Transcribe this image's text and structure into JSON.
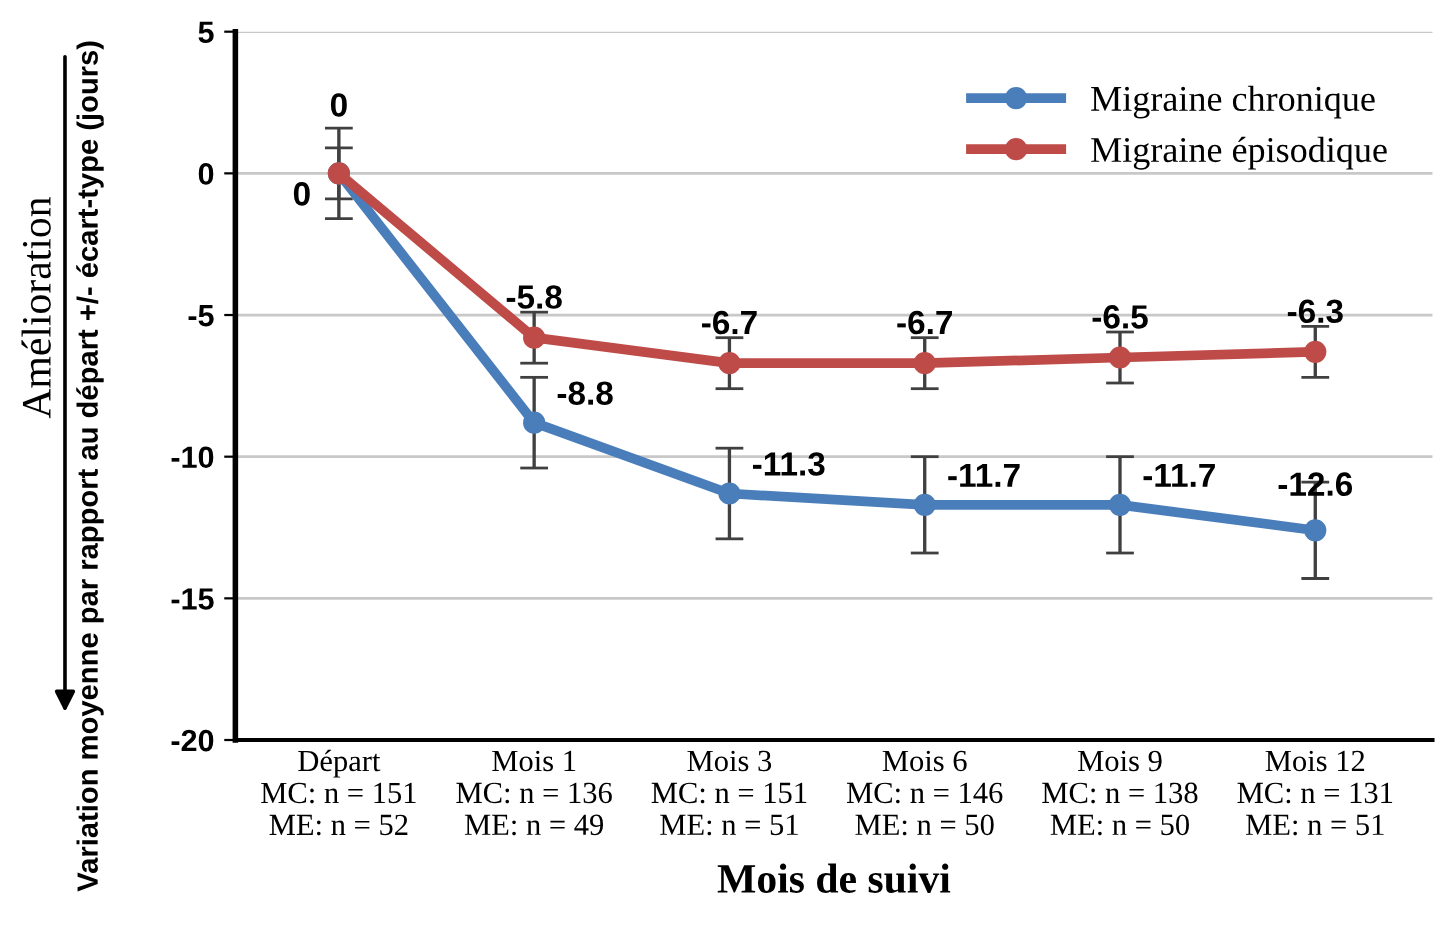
{
  "chart_data": {
    "type": "line",
    "categories": [
      "Départ\nMC: n = 151\nME: n = 52",
      "Mois 1\nMC: n = 136\nME: n = 49",
      "Mois 3\nMC: n = 151\nME: n = 51",
      "Mois 6\nMC: n = 146\nME: n = 50",
      "Mois 9\nMC: n = 138\nME: n = 50",
      "Mois 12\nMC: n = 131\nME: n = 51"
    ],
    "series": [
      {
        "name": "Migraine chronique",
        "color": "#4a7ebb",
        "values": [
          0,
          -8.8,
          -11.3,
          -11.7,
          -11.7,
          -12.6
        ],
        "errors": [
          1.6,
          1.6,
          1.6,
          1.7,
          1.7,
          1.7
        ],
        "value_labels": [
          "0",
          "-8.8",
          "-11.3",
          "-11.7",
          "-11.7",
          "-12.6"
        ]
      },
      {
        "name": "Migraine épisodique",
        "color": "#be4b48",
        "values": [
          0,
          -5.8,
          -6.7,
          -6.7,
          -6.5,
          -6.3
        ],
        "errors": [
          0.9,
          0.9,
          0.9,
          0.9,
          0.9,
          0.9
        ],
        "value_labels": [
          "0",
          "-5.8",
          "-6.7",
          "-6.7",
          "-6.5",
          "-6.3"
        ]
      }
    ],
    "xlabel": "Mois de suivi",
    "ylabel": "Variation moyenne par rapport au départ +/- écart-type (jours)",
    "annotations": [
      "Amélioration"
    ],
    "ylim": [
      -20,
      5
    ],
    "yticks": [
      -20,
      -15,
      -10,
      -5,
      0,
      5
    ],
    "grid": "y",
    "legend": "top right",
    "marker": "circle",
    "line_style": "solid"
  }
}
